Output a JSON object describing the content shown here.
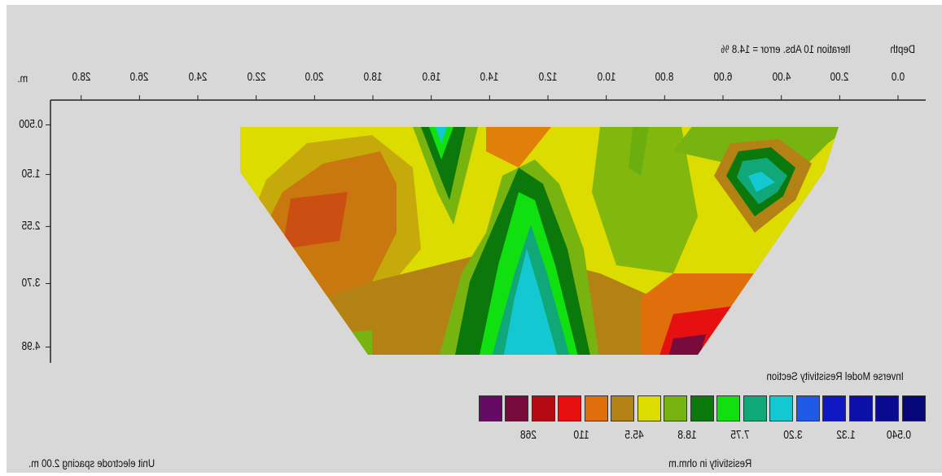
{
  "chart_data": {
    "type": "heatmap",
    "title": "Inverse Model Resistivity Section",
    "subtitle": "Iteration 10 Abs. error = 14.8 %",
    "depth_label": "Depth",
    "distance_unit": "m.",
    "x_ticks": [
      "0.0",
      "2.00",
      "4.00",
      "6.00",
      "8.00",
      "10.0",
      "12.0",
      "14.0",
      "16.0",
      "18.0",
      "20.0",
      "22.0",
      "24.0",
      "26.0",
      "28.0"
    ],
    "x_tick_values": [
      0,
      2,
      4,
      6,
      8,
      10,
      12,
      14,
      16,
      18,
      20,
      22,
      24,
      26,
      28
    ],
    "x_range": [
      0,
      30
    ],
    "depth_ticks": [
      "0.500",
      "1.50",
      "2.55",
      "3.70",
      "4.98"
    ],
    "depth_values": [
      0.5,
      1.5,
      2.55,
      3.7,
      4.98
    ],
    "legend_colors": [
      "#07077a",
      "#0a0a90",
      "#0c10a8",
      "#1018c4",
      "#1e5ae6",
      "#14c8d2",
      "#10a878",
      "#10e010",
      "#0a780a",
      "#78b410",
      "#dcdc00",
      "#b48214",
      "#e06e0a",
      "#e61010",
      "#b40a14",
      "#780a3c",
      "#640a64"
    ],
    "legend_values": [
      "0.540",
      "1.32",
      "3.20",
      "7.75",
      "18.8",
      "45.5",
      "110",
      "268"
    ],
    "legend_value_positions": [
      0.5,
      2.5,
      4.5,
      6.5,
      8.5,
      10.5,
      12.5,
      14.5
    ],
    "resistivity_label": "Resistivity in ohm.m",
    "electrode_spacing_label": "Unit electrode spacing 2.00 m."
  }
}
